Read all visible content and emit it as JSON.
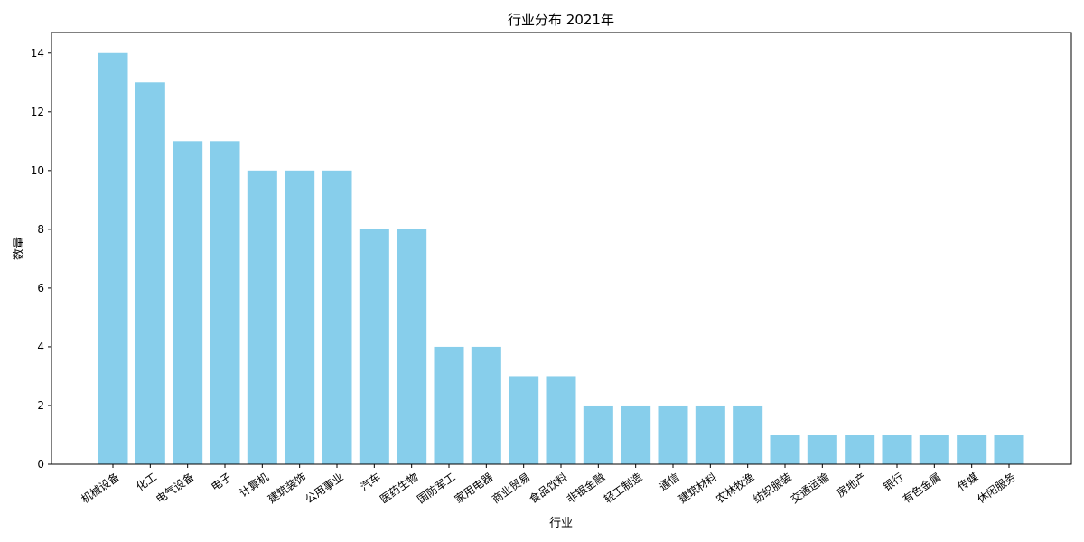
{
  "chart_data": {
    "type": "bar",
    "title": "行业分布 2021年",
    "xlabel": "行业",
    "ylabel": "数量",
    "categories": [
      "机械设备",
      "化工",
      "电气设备",
      "电子",
      "计算机",
      "建筑装饰",
      "公用事业",
      "汽车",
      "医药生物",
      "国防军工",
      "家用电器",
      "商业贸易",
      "食品饮料",
      "非银金融",
      "轻工制造",
      "通信",
      "建筑材料",
      "农林牧渔",
      "纺织服装",
      "交通运输",
      "房地产",
      "银行",
      "有色金属",
      "传媒",
      "休闲服务"
    ],
    "values": [
      14,
      13,
      11,
      11,
      10,
      10,
      10,
      8,
      8,
      4,
      4,
      3,
      3,
      2,
      2,
      2,
      2,
      2,
      1,
      1,
      1,
      1,
      1,
      1,
      1
    ],
    "ylim": [
      0,
      14.7
    ],
    "yticks": [
      0,
      2,
      4,
      6,
      8,
      10,
      12,
      14
    ],
    "grid": false,
    "bar_color": "#87CEEB"
  }
}
